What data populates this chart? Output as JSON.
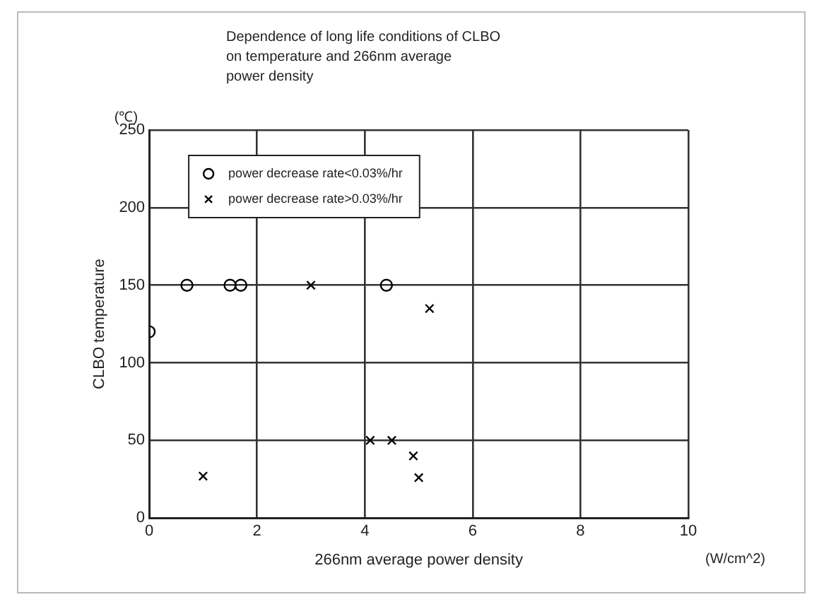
{
  "chart_data": {
    "type": "scatter",
    "title": "Dependence of long life conditions of CLBO\non temperature and 266nm average\npower density",
    "xlabel": "266nm average power density",
    "ylabel": "CLBO temperature",
    "annotations": [
      "(℃)",
      "(W/cm^2)"
    ],
    "xlim": [
      0,
      10
    ],
    "xticks": [
      0,
      2,
      4,
      6,
      8,
      10
    ],
    "ylim": [
      0,
      250
    ],
    "yticks": [
      0,
      50,
      100,
      150,
      200,
      250
    ],
    "grid": true,
    "legend": "top left",
    "series": [
      {
        "name": "power decrease rate<0.03%/hr",
        "color": "#000000",
        "marker": "circle",
        "x": [
          0,
          0.7,
          1.5,
          1.7,
          4.4
        ],
        "values": [
          120,
          150,
          150,
          150,
          150
        ]
      },
      {
        "name": "power decrease rate>0.03%/hr",
        "color": "#000000",
        "marker": "cross",
        "x": [
          1.0,
          3.0,
          4.1,
          4.5,
          4.9,
          5.0,
          5.2
        ],
        "values": [
          27,
          150,
          50,
          50,
          40,
          26,
          135
        ]
      }
    ]
  }
}
